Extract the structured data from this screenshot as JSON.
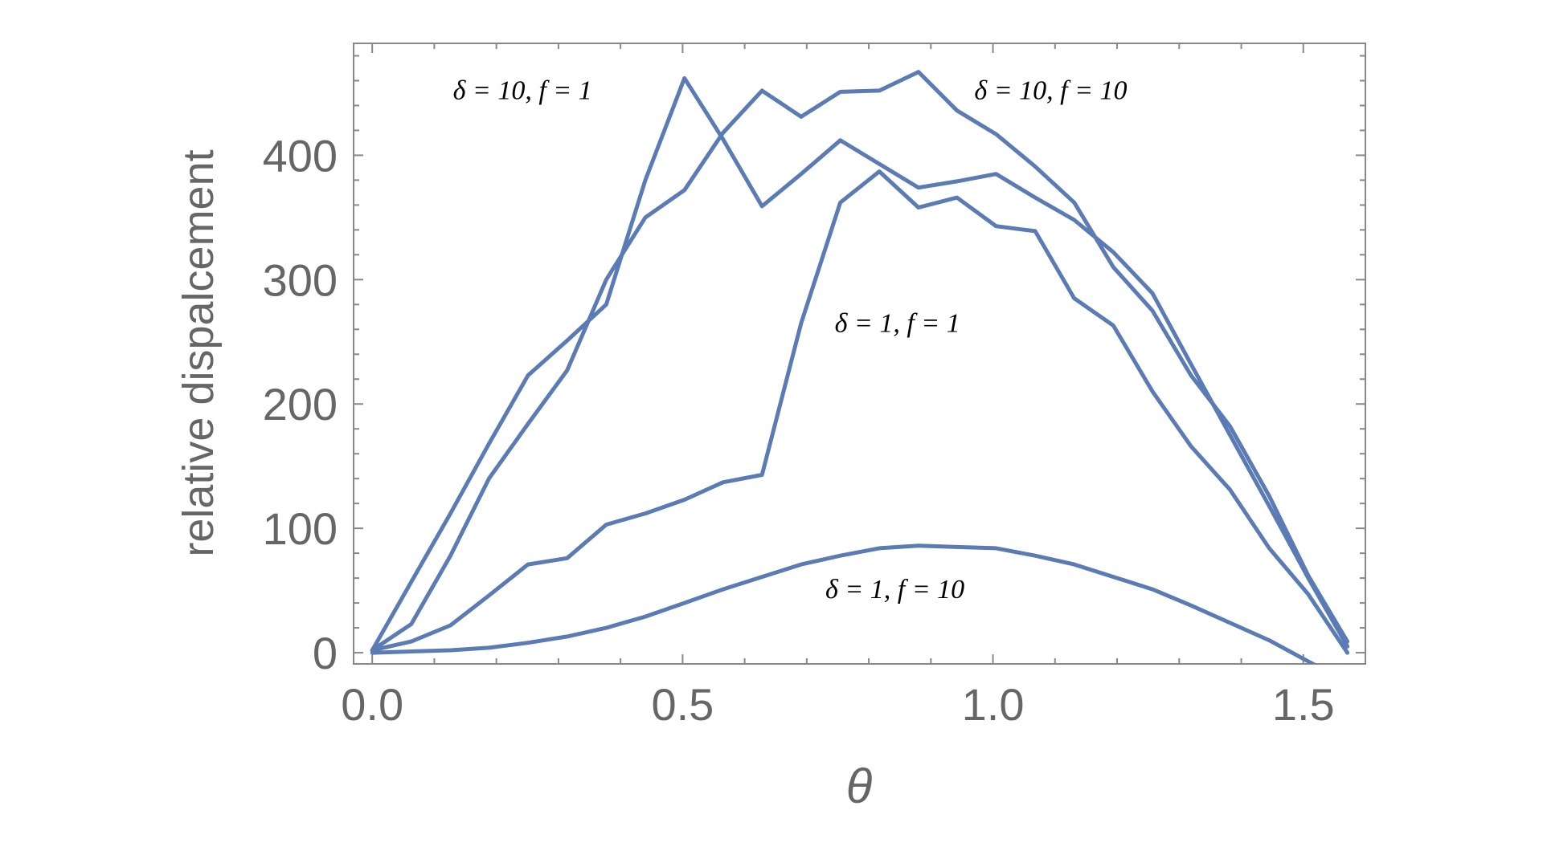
{
  "chart_data": {
    "type": "line",
    "title": "",
    "xlabel": "θ",
    "ylabel": "relative dispalcement",
    "xlim": [
      -0.03,
      1.6
    ],
    "ylim": [
      -9,
      490
    ],
    "xticks": [
      0.0,
      0.5,
      1.0,
      1.5
    ],
    "xtick_labels": [
      "0.0",
      "0.5",
      "1.0",
      "1.5"
    ],
    "yticks": [
      0,
      100,
      200,
      300,
      400
    ],
    "ytick_labels": [
      "0",
      "100",
      "200",
      "300",
      "400"
    ],
    "grid": false,
    "line_color": "#5b7bb4",
    "frame_color": "#888888",
    "series": [
      {
        "x": [
          0,
          0.063,
          0.126,
          0.188,
          0.251,
          0.314,
          0.377,
          0.44,
          0.503,
          0.565,
          0.628,
          0.691,
          0.754,
          0.817,
          0.88,
          0.942,
          1.005,
          1.068,
          1.131,
          1.194,
          1.257,
          1.319,
          1.382,
          1.445,
          1.508,
          1.571
        ],
        "y": [
          2,
          57,
          112,
          168,
          223,
          251,
          280,
          380,
          462,
          413,
          359,
          385,
          412,
          393,
          374,
          379,
          385,
          366,
          348,
          322,
          289,
          232,
          175,
          118,
          60,
          5
        ]
      },
      {
        "x": [
          0,
          0.063,
          0.126,
          0.188,
          0.251,
          0.314,
          0.377,
          0.44,
          0.503,
          0.565,
          0.628,
          0.691,
          0.754,
          0.817,
          0.88,
          0.942,
          1.005,
          1.068,
          1.131,
          1.194,
          1.257,
          1.319,
          1.382,
          1.445,
          1.508,
          1.571
        ],
        "y": [
          2,
          23,
          78,
          140,
          184,
          227,
          300,
          350,
          372,
          418,
          452,
          431,
          451,
          452,
          467,
          436,
          417,
          391,
          362,
          310,
          275,
          223,
          182,
          126,
          62,
          9
        ]
      },
      {
        "x": [
          0,
          0.063,
          0.126,
          0.188,
          0.251,
          0.314,
          0.377,
          0.44,
          0.503,
          0.565,
          0.628,
          0.691,
          0.754,
          0.817,
          0.88,
          0.942,
          1.005,
          1.068,
          1.131,
          1.194,
          1.257,
          1.319,
          1.382,
          1.445,
          1.508,
          1.571
        ],
        "y": [
          2,
          9,
          22,
          46,
          71,
          76,
          103,
          112,
          123,
          137,
          143,
          265,
          362,
          387,
          358,
          366,
          343,
          339,
          285,
          263,
          210,
          166,
          131,
          84,
          47,
          0
        ]
      },
      {
        "x": [
          0,
          0.063,
          0.126,
          0.188,
          0.251,
          0.314,
          0.377,
          0.44,
          0.503,
          0.565,
          0.628,
          0.691,
          0.754,
          0.817,
          0.88,
          0.942,
          1.005,
          1.068,
          1.131,
          1.194,
          1.257,
          1.319,
          1.382,
          1.445,
          1.508,
          1.571
        ],
        "y": [
          0,
          1,
          2,
          4,
          8,
          13,
          20,
          29,
          40,
          51,
          61,
          71,
          78,
          84,
          86,
          85,
          84,
          78,
          71,
          61,
          51,
          38,
          24,
          10,
          -7,
          -24
        ]
      }
    ],
    "annotations": [
      {
        "text": "δ = 10, f = 1",
        "x": 0.13,
        "y": 445
      },
      {
        "text": "δ = 10, f = 10",
        "x": 0.97,
        "y": 445
      },
      {
        "text": "δ = 1, f = 1",
        "x": 0.745,
        "y": 258
      },
      {
        "text": "δ = 1, f = 10",
        "x": 0.73,
        "y": 44
      }
    ]
  }
}
